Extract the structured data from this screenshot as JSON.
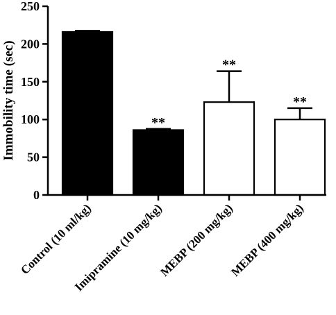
{
  "chart_data": {
    "type": "bar",
    "ylabel": "Immobility time (sec)",
    "ylim": [
      0,
      250
    ],
    "yticks": [
      0,
      50,
      100,
      150,
      200,
      250
    ],
    "categories": [
      "Control (10 ml/kg)",
      "Imipramine (10 mg/kg)",
      "MEBP (200 mg/kg)",
      "MEBP (400 mg/kg)"
    ],
    "values": [
      216,
      86,
      123,
      100
    ],
    "errors": [
      1.5,
      1.5,
      41,
      15
    ],
    "fills": [
      "#000000",
      "#000000",
      "#ffffff",
      "#ffffff"
    ],
    "significance": [
      "",
      "**",
      "**",
      "**"
    ],
    "grid": false,
    "legend": "none"
  }
}
